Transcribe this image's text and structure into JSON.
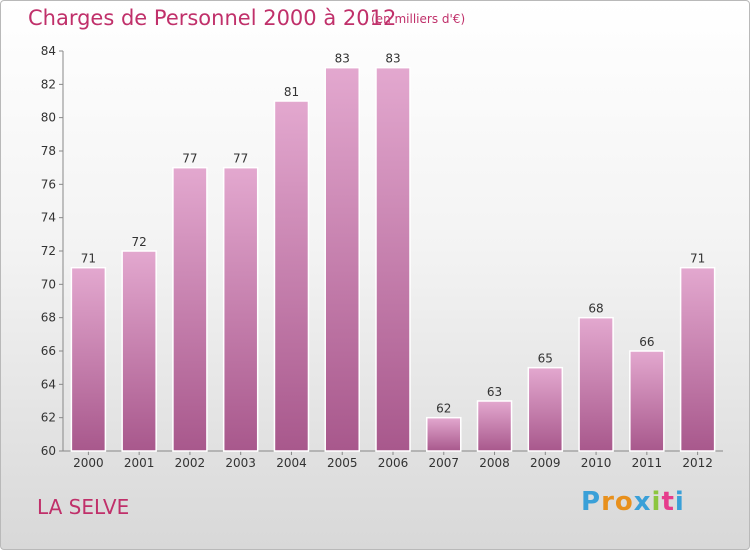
{
  "header": {
    "title": "Charges de Personnel 2000 à 2012",
    "subtitle": "(en milliers d'€)"
  },
  "footer": {
    "place": "LA SELVE",
    "logo_text": "Proxiti"
  },
  "colors": {
    "accent": "#c0306a",
    "bar_top": "#e3a8cf",
    "bar_bottom": "#a8588c",
    "logo_letters": [
      "#3aa0d8",
      "#e8901c",
      "#e8901c",
      "#3aa0d8",
      "#8cc63f",
      "#e63c8c",
      "#3aa0d8"
    ]
  },
  "chart_data": {
    "type": "bar",
    "categories": [
      "2000",
      "2001",
      "2002",
      "2003",
      "2004",
      "2005",
      "2006",
      "2007",
      "2008",
      "2009",
      "2010",
      "2011",
      "2012"
    ],
    "values": [
      71,
      72,
      77,
      77,
      81,
      83,
      83,
      62,
      63,
      65,
      68,
      66,
      71
    ],
    "ylim": [
      60,
      84
    ],
    "yticks": [
      60,
      62,
      64,
      66,
      68,
      70,
      72,
      74,
      76,
      78,
      80,
      82,
      84
    ],
    "grid": false,
    "data_labels": true
  }
}
